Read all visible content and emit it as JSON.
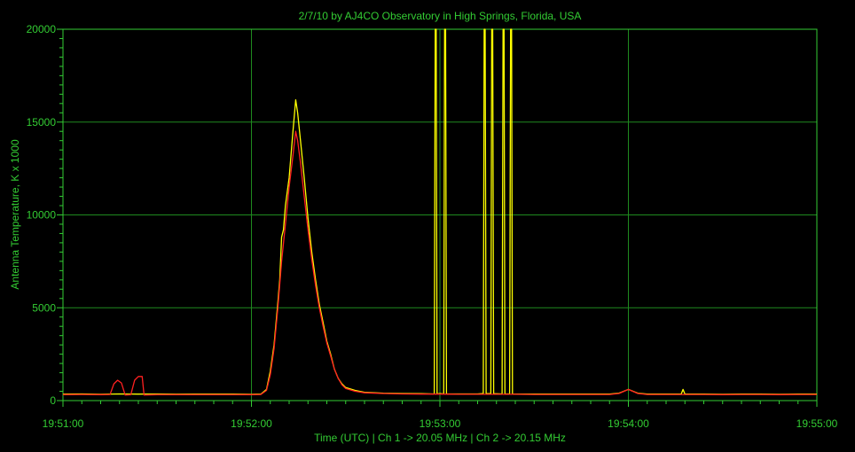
{
  "chart_data": {
    "type": "line",
    "title": "2/7/10  by  AJ4CO Observatory  in  High Springs, Florida, USA",
    "xlabel": "Time (UTC)  |  Ch 1 -> 20.05 MHz  |  Ch 2 -> 20.15 MHz",
    "ylabel": "Antenna Temperature, K x 1000",
    "x_ticks": [
      "19:51:00",
      "19:52:00",
      "19:53:00",
      "19:54:00",
      "19:55:00"
    ],
    "y_ticks": [
      "0",
      "5000",
      "10000",
      "15000",
      "20000"
    ],
    "xlim_minutes": [
      0,
      4
    ],
    "ylim": [
      0,
      20000
    ],
    "grid": true,
    "colors": {
      "background": "#000000",
      "axes": "#33cc33",
      "grid": "#1f8a1f",
      "ch1": "#ffff00",
      "ch2": "#ff2020"
    },
    "series": [
      {
        "name": "Ch 1",
        "color": "#ffff00",
        "points": [
          [
            0.0,
            350
          ],
          [
            0.1,
            360
          ],
          [
            0.2,
            340
          ],
          [
            0.3,
            360
          ],
          [
            0.4,
            350
          ],
          [
            0.5,
            360
          ],
          [
            0.6,
            345
          ],
          [
            0.7,
            355
          ],
          [
            0.8,
            350
          ],
          [
            0.9,
            350
          ],
          [
            1.0,
            340
          ],
          [
            1.05,
            350
          ],
          [
            1.08,
            600
          ],
          [
            1.1,
            1600
          ],
          [
            1.12,
            3000
          ],
          [
            1.14,
            5300
          ],
          [
            1.15,
            6500
          ],
          [
            1.16,
            8800
          ],
          [
            1.17,
            9200
          ],
          [
            1.18,
            10500
          ],
          [
            1.2,
            12000
          ],
          [
            1.22,
            14500
          ],
          [
            1.235,
            16200
          ],
          [
            1.245,
            15500
          ],
          [
            1.26,
            14000
          ],
          [
            1.28,
            12000
          ],
          [
            1.3,
            9800
          ],
          [
            1.32,
            8000
          ],
          [
            1.34,
            6500
          ],
          [
            1.36,
            5200
          ],
          [
            1.38,
            4200
          ],
          [
            1.4,
            3200
          ],
          [
            1.42,
            2500
          ],
          [
            1.44,
            1700
          ],
          [
            1.46,
            1200
          ],
          [
            1.48,
            900
          ],
          [
            1.5,
            700
          ],
          [
            1.55,
            550
          ],
          [
            1.6,
            450
          ],
          [
            1.7,
            400
          ],
          [
            1.8,
            380
          ],
          [
            1.9,
            370
          ],
          [
            1.97,
            360
          ],
          [
            1.975,
            20000
          ],
          [
            1.98,
            20000
          ],
          [
            1.985,
            360
          ],
          [
            2.0,
            380
          ],
          [
            2.02,
            360
          ],
          [
            2.025,
            20000
          ],
          [
            2.03,
            20000
          ],
          [
            2.035,
            360
          ],
          [
            2.1,
            360
          ],
          [
            2.2,
            360
          ],
          [
            2.23,
            380
          ],
          [
            2.235,
            20000
          ],
          [
            2.24,
            20000
          ],
          [
            2.245,
            380
          ],
          [
            2.27,
            370
          ],
          [
            2.275,
            20000
          ],
          [
            2.28,
            20000
          ],
          [
            2.285,
            370
          ],
          [
            2.33,
            360
          ],
          [
            2.335,
            20000
          ],
          [
            2.34,
            20000
          ],
          [
            2.345,
            360
          ],
          [
            2.37,
            360
          ],
          [
            2.375,
            20000
          ],
          [
            2.38,
            20000
          ],
          [
            2.385,
            360
          ],
          [
            2.5,
            350
          ],
          [
            2.6,
            350
          ],
          [
            2.7,
            350
          ],
          [
            2.8,
            350
          ],
          [
            2.9,
            350
          ],
          [
            2.95,
            400
          ],
          [
            3.0,
            600
          ],
          [
            3.05,
            400
          ],
          [
            3.1,
            350
          ],
          [
            3.2,
            350
          ],
          [
            3.28,
            350
          ],
          [
            3.29,
            600
          ],
          [
            3.3,
            350
          ],
          [
            3.4,
            350
          ],
          [
            3.5,
            340
          ],
          [
            3.6,
            350
          ],
          [
            3.7,
            350
          ],
          [
            3.8,
            340
          ],
          [
            3.9,
            350
          ],
          [
            4.0,
            350
          ]
        ]
      },
      {
        "name": "Ch 2",
        "color": "#ff2020",
        "points": [
          [
            0.0,
            320
          ],
          [
            0.1,
            330
          ],
          [
            0.2,
            320
          ],
          [
            0.25,
            330
          ],
          [
            0.27,
            900
          ],
          [
            0.29,
            1100
          ],
          [
            0.31,
            950
          ],
          [
            0.33,
            300
          ],
          [
            0.36,
            320
          ],
          [
            0.38,
            1100
          ],
          [
            0.4,
            1300
          ],
          [
            0.42,
            1300
          ],
          [
            0.43,
            300
          ],
          [
            0.5,
            320
          ],
          [
            0.6,
            320
          ],
          [
            0.7,
            320
          ],
          [
            0.8,
            320
          ],
          [
            0.9,
            320
          ],
          [
            1.0,
            320
          ],
          [
            1.05,
            330
          ],
          [
            1.08,
            550
          ],
          [
            1.1,
            1400
          ],
          [
            1.12,
            2800
          ],
          [
            1.14,
            5000
          ],
          [
            1.16,
            7500
          ],
          [
            1.18,
            9500
          ],
          [
            1.2,
            11500
          ],
          [
            1.22,
            13200
          ],
          [
            1.235,
            14500
          ],
          [
            1.245,
            14000
          ],
          [
            1.26,
            12800
          ],
          [
            1.28,
            11000
          ],
          [
            1.3,
            9200
          ],
          [
            1.32,
            7600
          ],
          [
            1.34,
            6200
          ],
          [
            1.36,
            5000
          ],
          [
            1.38,
            4000
          ],
          [
            1.4,
            3100
          ],
          [
            1.42,
            2400
          ],
          [
            1.44,
            1700
          ],
          [
            1.46,
            1200
          ],
          [
            1.48,
            850
          ],
          [
            1.5,
            650
          ],
          [
            1.55,
            500
          ],
          [
            1.6,
            420
          ],
          [
            1.7,
            380
          ],
          [
            1.8,
            360
          ],
          [
            1.9,
            350
          ],
          [
            2.0,
            350
          ],
          [
            2.1,
            340
          ],
          [
            2.2,
            340
          ],
          [
            2.3,
            340
          ],
          [
            2.4,
            340
          ],
          [
            2.5,
            330
          ],
          [
            2.6,
            330
          ],
          [
            2.7,
            330
          ],
          [
            2.8,
            330
          ],
          [
            2.9,
            330
          ],
          [
            2.95,
            380
          ],
          [
            3.0,
            600
          ],
          [
            3.05,
            380
          ],
          [
            3.1,
            330
          ],
          [
            3.2,
            330
          ],
          [
            3.3,
            330
          ],
          [
            3.4,
            330
          ],
          [
            3.5,
            320
          ],
          [
            3.6,
            330
          ],
          [
            3.7,
            330
          ],
          [
            3.8,
            320
          ],
          [
            3.9,
            330
          ],
          [
            4.0,
            330
          ]
        ]
      }
    ]
  }
}
